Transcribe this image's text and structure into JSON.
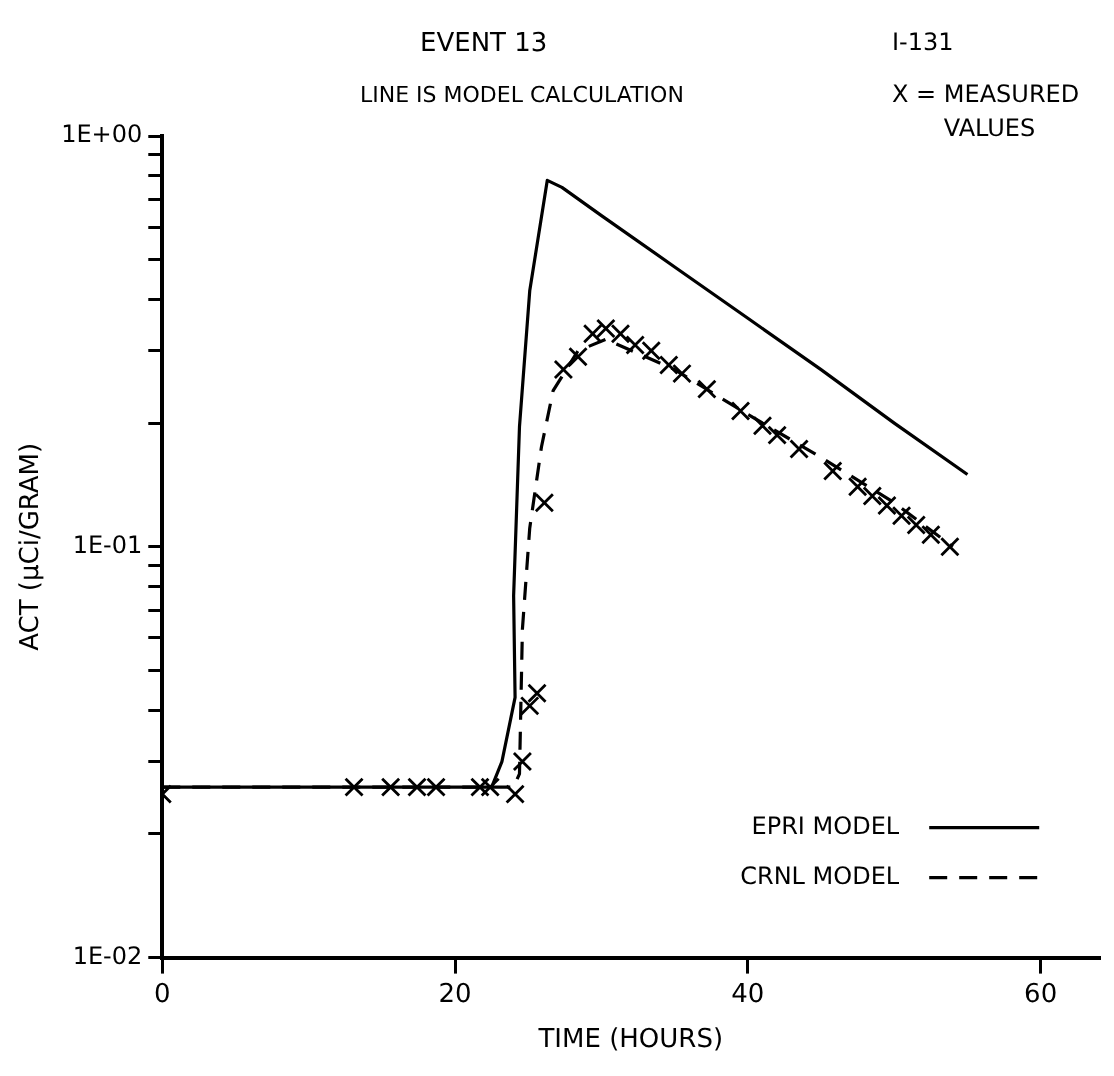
{
  "chart_data": {
    "type": "line",
    "title": "EVENT 13",
    "subtitle": "LINE IS MODEL CALCULATION",
    "xlabel": "TIME (HOURS)",
    "ylabel": "ACT (μCi/GRAM)",
    "annotations": [
      "I-131",
      "X = MEASURED VALUES"
    ],
    "log": "y",
    "grid": false,
    "legend": "bottom right",
    "xlim": [
      0,
      64
    ],
    "xticks": [
      0,
      20,
      40,
      60
    ],
    "ylim": [
      0.01,
      1
    ],
    "yticks": [
      {
        "value": 0.01,
        "label": "1E-02"
      },
      {
        "value": 0.02,
        "label": null
      },
      {
        "value": 0.03,
        "label": null
      },
      {
        "value": 0.04,
        "label": null
      },
      {
        "value": 0.05,
        "label": null
      },
      {
        "value": 0.06,
        "label": null
      },
      {
        "value": 0.07,
        "label": null
      },
      {
        "value": 0.08,
        "label": null
      },
      {
        "value": 0.09,
        "label": null
      },
      {
        "value": 0.1,
        "label": "1E-01"
      },
      {
        "value": 0.2,
        "label": null
      },
      {
        "value": 0.3,
        "label": null
      },
      {
        "value": 0.4,
        "label": null
      },
      {
        "value": 0.5,
        "label": null
      },
      {
        "value": 0.6,
        "label": null
      },
      {
        "value": 0.7,
        "label": null
      },
      {
        "value": 0.8,
        "label": null
      },
      {
        "value": 0.9,
        "label": null
      },
      {
        "value": 1,
        "label": "1E+00"
      }
    ],
    "series": [
      {
        "name": "EPRI MODEL",
        "type": "line",
        "color": "#000000",
        "marker": "none",
        "line_style": "solid",
        "x": [
          0,
          22.5,
          23.2,
          24.1,
          24.0,
          24.4,
          25.1,
          26.3,
          27.3,
          30,
          35,
          40,
          45,
          50,
          55
        ],
        "values": [
          0.026,
          0.026,
          0.03,
          0.043,
          0.076,
          0.196,
          0.42,
          0.78,
          0.75,
          0.64,
          0.48,
          0.36,
          0.27,
          0.2,
          0.15
        ]
      },
      {
        "name": "CRNL MODEL",
        "type": "line",
        "color": "#000000",
        "marker": "none",
        "line_style": "dashed",
        "x": [
          0,
          24,
          24.4,
          24.6,
          25.1,
          25.9,
          26.7,
          28.4,
          30.3,
          35,
          40,
          45,
          50,
          54
        ],
        "values": [
          0.026,
          0.026,
          0.028,
          0.063,
          0.111,
          0.175,
          0.24,
          0.3,
          0.32,
          0.27,
          0.21,
          0.165,
          0.128,
          0.1
        ]
      },
      {
        "type": "scatter",
        "color": "#000000",
        "marker": "cross",
        "x": [
          0,
          13.1,
          15.6,
          17.4,
          18.7,
          21.7,
          22.4,
          24.1,
          24.6,
          25.1,
          25.6,
          26.1,
          27.4,
          28.4,
          29.4,
          30.3,
          31.3,
          32.3,
          33.4,
          34.6,
          35.5,
          37.2,
          39.5,
          41.0,
          42.0,
          43.5,
          45.8,
          47.5,
          48.5,
          49.5,
          50.5,
          51.5,
          52.5,
          53.8
        ],
        "values": [
          0.025,
          0.026,
          0.026,
          0.026,
          0.026,
          0.026,
          0.026,
          0.025,
          0.03,
          0.041,
          0.044,
          0.128,
          0.27,
          0.29,
          0.33,
          0.34,
          0.33,
          0.31,
          0.3,
          0.277,
          0.264,
          0.242,
          0.214,
          0.197,
          0.187,
          0.173,
          0.153,
          0.14,
          0.133,
          0.126,
          0.119,
          0.113,
          0.107,
          0.1
        ]
      }
    ]
  }
}
